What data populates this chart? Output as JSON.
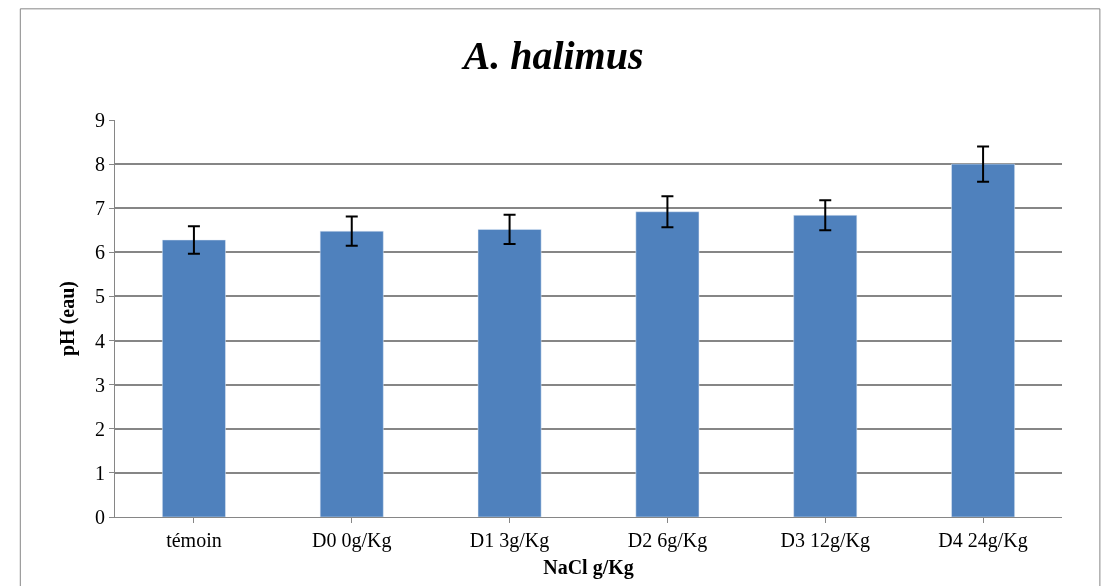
{
  "chart_data": {
    "type": "bar",
    "title": "A. halimus",
    "xlabel": "NaCl g/Kg",
    "ylabel": "pH (eau)",
    "categories": [
      "témoin",
      "D0 0g/Kg",
      "D1 3g/Kg",
      "D2 6g/Kg",
      "D3 12g/Kg",
      "D4 24g/Kg"
    ],
    "values": [
      6.28,
      6.48,
      6.52,
      6.92,
      6.84,
      8.0
    ],
    "errors": [
      0.31,
      0.33,
      0.33,
      0.35,
      0.34,
      0.4
    ],
    "color": "#4f81bd",
    "ylim": [
      0,
      9
    ],
    "yticks": [
      0,
      1,
      2,
      3,
      4,
      5,
      6,
      7,
      8,
      9
    ],
    "grid": "y",
    "legend": false
  }
}
